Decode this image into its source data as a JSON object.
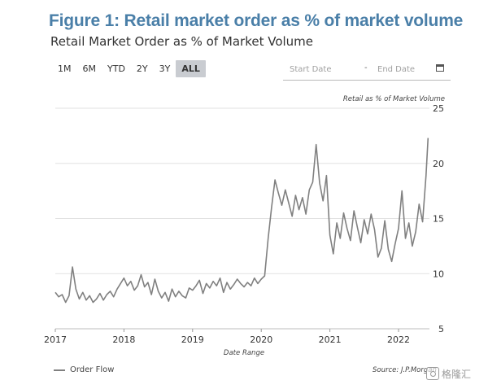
{
  "figure_title": "Figure 1: Retail market order as % of market volume",
  "chart_title": "Retail Market Order as % of Market Volume",
  "range_buttons": [
    {
      "label": "1M",
      "active": false
    },
    {
      "label": "6M",
      "active": false
    },
    {
      "label": "YTD",
      "active": false
    },
    {
      "label": "2Y",
      "active": false
    },
    {
      "label": "3Y",
      "active": false
    },
    {
      "label": "ALL",
      "active": true
    }
  ],
  "date_range": {
    "start_placeholder": "Start Date",
    "separator": "-",
    "end_placeholder": "End Date",
    "calendar_icon": "calendar-icon"
  },
  "legend_label": "Order Flow",
  "source": "Source: J.P.Morgan",
  "watermark_text": "格隆汇",
  "chart_data": {
    "type": "line",
    "ylabel": "Retail as % of Market Volume",
    "xlabel": "Date Range",
    "y_axis_position": "right",
    "ylim": [
      5,
      25
    ],
    "y_ticks": [
      5,
      10,
      15,
      20,
      25
    ],
    "x_ticks": [
      "2017",
      "2018",
      "2019",
      "2020",
      "2021",
      "2022"
    ],
    "xlim": [
      2017.0,
      2022.45
    ],
    "grid": true,
    "legend_position": "bottom-left",
    "line_color": "#808080",
    "series": [
      {
        "name": "Order Flow",
        "x": [
          2017.0,
          2017.05,
          2017.1,
          2017.15,
          2017.2,
          2017.25,
          2017.3,
          2017.35,
          2017.4,
          2017.45,
          2017.5,
          2017.55,
          2017.6,
          2017.65,
          2017.7,
          2017.75,
          2017.8,
          2017.85,
          2017.9,
          2017.95,
          2018.0,
          2018.05,
          2018.1,
          2018.15,
          2018.2,
          2018.25,
          2018.3,
          2018.35,
          2018.4,
          2018.45,
          2018.5,
          2018.55,
          2018.6,
          2018.65,
          2018.7,
          2018.75,
          2018.8,
          2018.85,
          2018.9,
          2018.95,
          2019.0,
          2019.05,
          2019.1,
          2019.15,
          2019.2,
          2019.25,
          2019.3,
          2019.35,
          2019.4,
          2019.45,
          2019.5,
          2019.55,
          2019.6,
          2019.65,
          2019.7,
          2019.75,
          2019.8,
          2019.85,
          2019.9,
          2019.95,
          2020.0,
          2020.05,
          2020.1,
          2020.15,
          2020.2,
          2020.25,
          2020.3,
          2020.35,
          2020.4,
          2020.45,
          2020.5,
          2020.55,
          2020.6,
          2020.65,
          2020.7,
          2020.75,
          2020.8,
          2020.85,
          2020.9,
          2020.95,
          2021.0,
          2021.05,
          2021.1,
          2021.15,
          2021.2,
          2021.25,
          2021.3,
          2021.35,
          2021.4,
          2021.45,
          2021.5,
          2021.55,
          2021.6,
          2021.65,
          2021.7,
          2021.75,
          2021.8,
          2021.85,
          2021.9,
          2021.95,
          2022.0,
          2022.05,
          2022.1,
          2022.15,
          2022.2,
          2022.25,
          2022.3,
          2022.35,
          2022.4,
          2022.43
        ],
        "y": [
          8.3,
          7.9,
          8.1,
          7.4,
          8.0,
          10.6,
          8.6,
          7.7,
          8.3,
          7.6,
          8.0,
          7.4,
          7.7,
          8.2,
          7.6,
          8.1,
          8.4,
          7.9,
          8.6,
          9.1,
          9.6,
          8.9,
          9.3,
          8.5,
          8.9,
          9.9,
          8.8,
          9.2,
          8.1,
          9.5,
          8.4,
          7.8,
          8.3,
          7.5,
          8.6,
          7.9,
          8.4,
          8.0,
          7.8,
          8.7,
          8.5,
          8.9,
          9.4,
          8.2,
          9.1,
          8.7,
          9.3,
          8.9,
          9.6,
          8.3,
          9.2,
          8.6,
          9.0,
          9.5,
          9.1,
          8.8,
          9.2,
          8.9,
          9.6,
          9.1,
          9.5,
          9.8,
          13.2,
          16.0,
          18.5,
          17.3,
          16.2,
          17.6,
          16.4,
          15.2,
          17.1,
          15.8,
          16.9,
          15.4,
          17.6,
          18.3,
          21.7,
          18.2,
          16.6,
          18.9,
          13.5,
          11.8,
          14.6,
          13.2,
          15.5,
          14.1,
          13.0,
          15.7,
          14.2,
          12.8,
          14.9,
          13.6,
          15.4,
          14.0,
          11.5,
          12.3,
          14.8,
          12.2,
          11.1,
          12.7,
          14.1,
          17.5,
          13.2,
          14.6,
          12.5,
          13.8,
          16.3,
          14.7,
          18.9,
          22.3
        ]
      }
    ]
  }
}
